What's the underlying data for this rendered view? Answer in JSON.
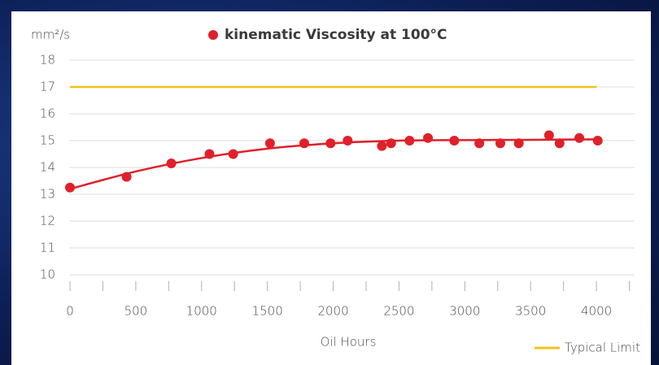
{
  "chart_data": {
    "type": "scatter",
    "title": "kinematic Viscosity at 100°C",
    "y_label": "mm²/s",
    "x_label": "Oil Hours",
    "series": [
      {
        "name": "kinematic Viscosity at 100°C",
        "color": "#e0202a",
        "x": [
          0,
          430,
          770,
          1060,
          1240,
          1520,
          1780,
          1980,
          2110,
          2370,
          2440,
          2580,
          2720,
          2920,
          3110,
          3270,
          3410,
          3640,
          3720,
          3870,
          4010
        ],
        "values": [
          13.25,
          13.65,
          14.15,
          14.5,
          14.5,
          14.9,
          14.9,
          14.9,
          15.0,
          14.8,
          14.9,
          15.0,
          15.1,
          15.0,
          14.9,
          14.9,
          14.9,
          15.2,
          14.9,
          15.1,
          15.0
        ]
      }
    ],
    "trend": {
      "color": "#e0202a",
      "x": [
        0,
        500,
        1000,
        1500,
        2000,
        2500,
        3000,
        3500,
        4000
      ],
      "values": [
        13.2,
        13.85,
        14.35,
        14.7,
        14.9,
        15.0,
        15.02,
        15.03,
        15.05
      ]
    },
    "limit": {
      "name": "Typical Limit",
      "color": "#f2c318",
      "x": [
        0,
        4000
      ],
      "values": [
        17,
        17
      ]
    },
    "xlim": [
      0,
      4290
    ],
    "ylim": [
      10,
      18
    ],
    "xticks": [
      0,
      500,
      1000,
      1500,
      2000,
      2500,
      3000,
      3500,
      4000
    ],
    "xminor_ticks": [
      250,
      750,
      1250,
      1750,
      2250,
      2750,
      3250,
      3750,
      4250
    ],
    "yticks": [
      10,
      11,
      12,
      13,
      14,
      15,
      16,
      17,
      18
    ],
    "grid": true
  }
}
